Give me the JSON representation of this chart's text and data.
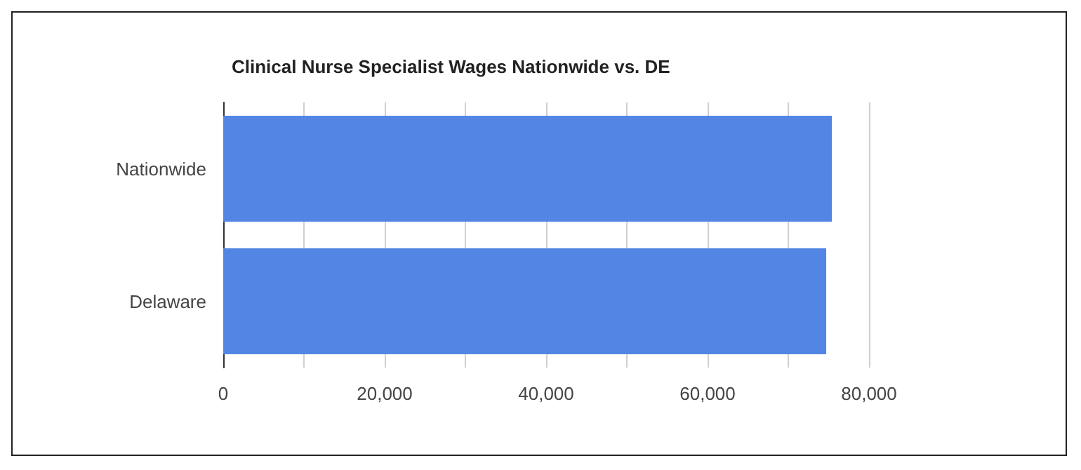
{
  "chart_data": {
    "type": "bar",
    "orientation": "horizontal",
    "title": "Clinical Nurse Specialist Wages Nationwide vs. DE",
    "categories": [
      "Nationwide",
      "Delaware"
    ],
    "values": [
      75400,
      74700
    ],
    "color": "#5386e4",
    "xlim": [
      0,
      80000
    ],
    "xticks": [
      0,
      {
        "value": 10000,
        "label": null
      },
      {
        "value": 20000,
        "label": "20,000"
      },
      {
        "value": 30000,
        "label": null
      },
      {
        "value": 40000,
        "label": "40,000"
      },
      {
        "value": 50000,
        "label": null
      },
      {
        "value": 60000,
        "label": "60,000"
      },
      {
        "value": 70000,
        "label": null
      },
      {
        "value": 80000,
        "label": "80,000"
      }
    ],
    "grid": "x"
  }
}
